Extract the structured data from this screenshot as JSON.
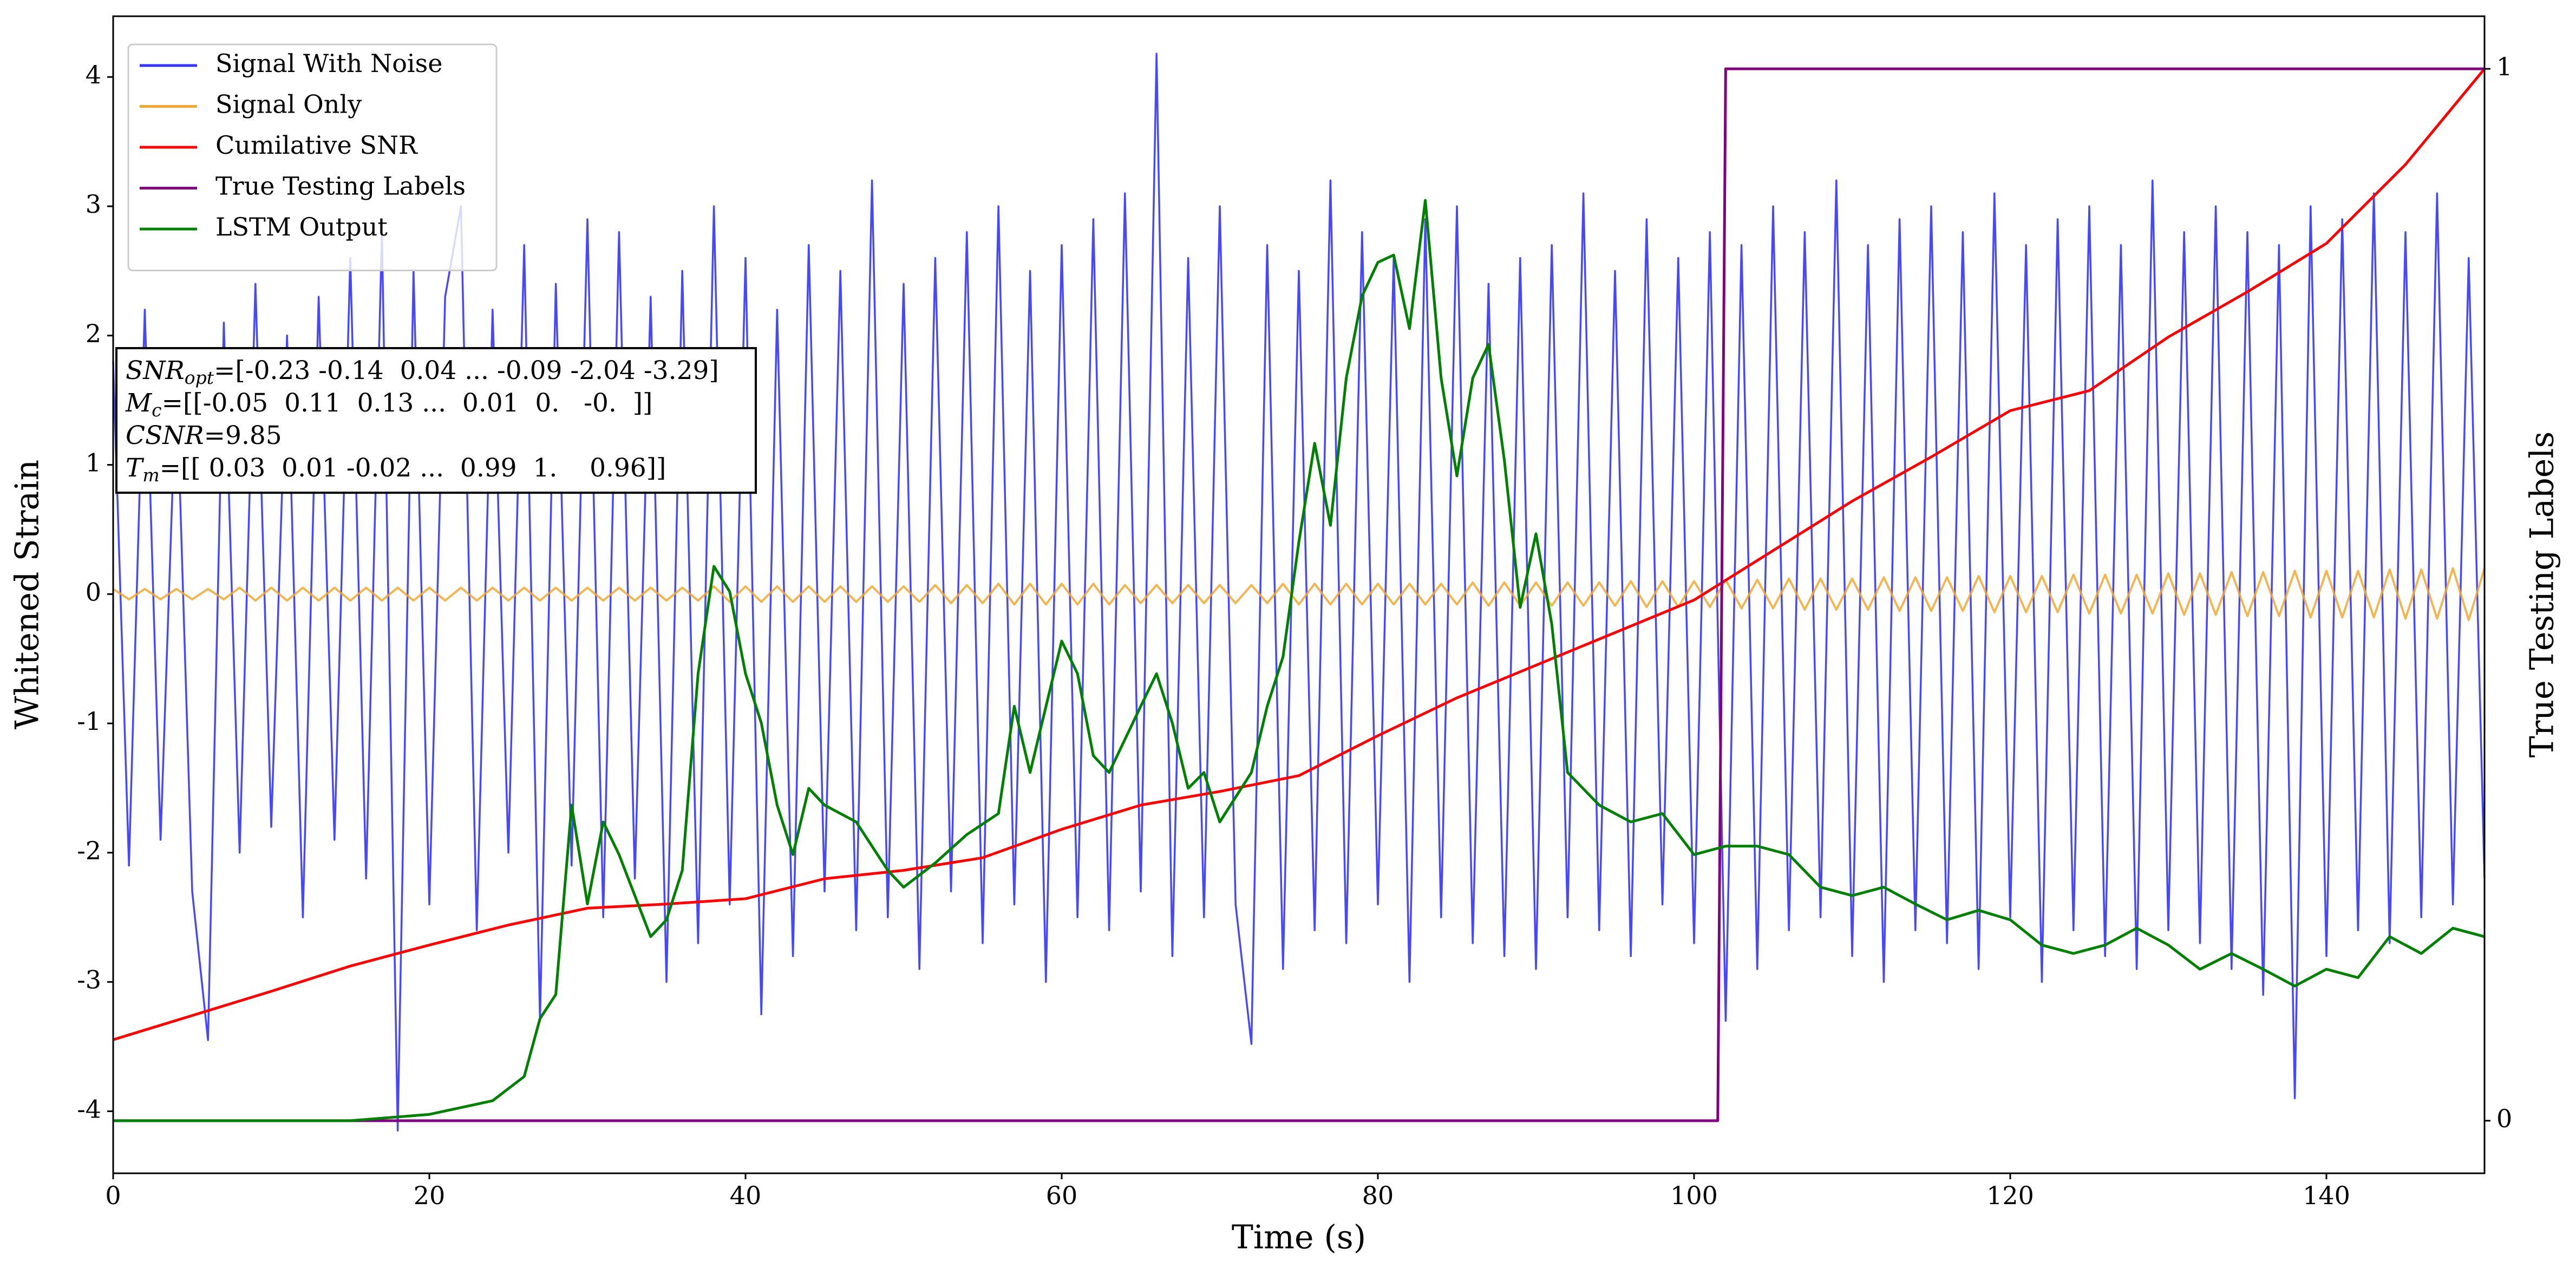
{
  "chart_data": {
    "type": "line",
    "xlabel": "Time (s)",
    "ylabel": "Whitened Strain",
    "y2label": "True Testing Labels",
    "xlim": [
      0,
      150
    ],
    "ylim": [
      -4.48,
      4.47
    ],
    "y2lim": [
      -0.05,
      1.05
    ],
    "xticks": [
      0,
      20,
      40,
      60,
      80,
      100,
      120,
      140
    ],
    "yticks": [
      -4,
      -3,
      -2,
      -1,
      0,
      1,
      2,
      3,
      4
    ],
    "y2ticks": [
      0,
      1
    ],
    "legend": "upper left",
    "x": [
      0,
      1,
      2,
      3,
      4,
      5,
      6,
      7,
      8,
      9,
      10,
      11,
      12,
      13,
      14,
      15,
      16,
      17,
      18,
      19,
      20,
      21,
      22,
      23,
      24,
      25,
      26,
      27,
      28,
      29,
      30,
      31,
      32,
      33,
      34,
      35,
      36,
      37,
      38,
      39,
      40,
      41,
      42,
      43,
      44,
      45,
      46,
      47,
      48,
      49,
      50,
      51,
      52,
      53,
      54,
      55,
      56,
      57,
      58,
      59,
      60,
      61,
      62,
      63,
      64,
      65,
      66,
      67,
      68,
      69,
      70,
      71,
      72,
      73,
      74,
      75,
      76,
      77,
      78,
      79,
      80,
      81,
      82,
      83,
      84,
      85,
      86,
      87,
      88,
      89,
      90,
      91,
      92,
      93,
      94,
      95,
      96,
      97,
      98,
      99,
      100,
      101,
      102,
      103,
      104,
      105,
      106,
      107,
      108,
      109,
      110,
      111,
      112,
      113,
      114,
      115,
      116,
      117,
      118,
      119,
      120,
      121,
      122,
      123,
      124,
      125,
      126,
      127,
      128,
      129,
      130,
      131,
      132,
      133,
      134,
      135,
      136,
      137,
      138,
      139,
      140,
      141,
      142,
      143,
      144,
      145,
      146,
      147,
      148,
      149,
      150
    ],
    "series": [
      {
        "name": "Signal With Noise",
        "color": "#3333ff",
        "values": [
          1.8,
          -2.1,
          2.2,
          -1.9,
          1.7,
          -2.3,
          -3.45,
          2.1,
          -2.0,
          2.4,
          -1.8,
          2.0,
          -2.5,
          2.3,
          -1.9,
          2.6,
          -2.2,
          2.8,
          -4.15,
          2.5,
          -2.4,
          2.3,
          3.0,
          -2.6,
          2.2,
          -2.0,
          2.7,
          -3.3,
          2.4,
          -2.1,
          2.9,
          -2.5,
          2.8,
          -2.2,
          2.3,
          -3.0,
          2.5,
          -2.7,
          3.0,
          -2.4,
          2.6,
          -3.25,
          2.2,
          -2.8,
          2.7,
          -2.3,
          2.5,
          -2.6,
          3.2,
          -2.5,
          2.4,
          -2.9,
          2.6,
          -2.3,
          2.8,
          -2.7,
          3.0,
          -2.4,
          2.5,
          -3.0,
          2.7,
          -2.5,
          2.9,
          -2.6,
          3.1,
          -2.3,
          4.18,
          -2.8,
          2.6,
          -2.5,
          3.0,
          -2.4,
          -3.48,
          2.7,
          -2.9,
          2.5,
          -2.6,
          3.2,
          -2.7,
          2.8,
          -2.4,
          2.6,
          -3.0,
          2.9,
          -2.5,
          3.0,
          -2.7,
          2.4,
          -2.8,
          2.6,
          -2.9,
          2.7,
          -2.5,
          3.1,
          -2.6,
          2.5,
          -2.8,
          2.9,
          -2.4,
          2.6,
          -2.7,
          2.8,
          -3.3,
          2.7,
          -2.9,
          3.0,
          -2.6,
          2.8,
          -2.5,
          3.2,
          -2.8,
          2.7,
          -3.0,
          2.9,
          -2.6,
          3.0,
          -2.7,
          2.8,
          -2.9,
          3.1,
          -2.5,
          2.7,
          -3.0,
          2.9,
          -2.6,
          3.0,
          -2.8,
          2.7,
          -2.9,
          3.2,
          -2.6,
          2.8,
          -2.7,
          3.0,
          -2.9,
          2.8,
          -3.1,
          2.7,
          -3.9,
          3.0,
          -2.8,
          2.9,
          -2.6,
          3.1,
          -2.7,
          2.8,
          -2.5,
          3.1,
          -2.4,
          2.6,
          -2.2
        ]
      },
      {
        "name": "Signal Only",
        "color": "#f0a830",
        "values": [
          0.04,
          -0.04,
          0.04,
          -0.04,
          0.04,
          -0.04,
          0.04,
          -0.04,
          0.05,
          -0.05,
          0.05,
          -0.05,
          0.05,
          -0.05,
          0.05,
          -0.05,
          0.05,
          -0.05,
          0.05,
          -0.05,
          0.05,
          -0.05,
          0.05,
          -0.05,
          0.05,
          -0.05,
          0.05,
          -0.05,
          0.05,
          -0.05,
          0.05,
          -0.05,
          0.05,
          -0.05,
          0.05,
          -0.05,
          0.05,
          -0.05,
          0.06,
          -0.06,
          0.06,
          -0.06,
          0.06,
          -0.06,
          0.06,
          -0.06,
          0.06,
          -0.06,
          0.06,
          -0.06,
          0.06,
          -0.06,
          0.07,
          -0.07,
          0.07,
          -0.07,
          0.08,
          -0.08,
          0.08,
          -0.08,
          0.08,
          -0.08,
          0.08,
          -0.08,
          0.07,
          -0.07,
          0.07,
          -0.07,
          0.07,
          -0.07,
          0.07,
          -0.07,
          0.07,
          -0.07,
          0.08,
          -0.08,
          0.08,
          -0.08,
          0.08,
          -0.08,
          0.08,
          -0.08,
          0.08,
          -0.08,
          0.08,
          -0.08,
          0.09,
          -0.09,
          0.09,
          -0.09,
          0.09,
          -0.09,
          0.09,
          -0.09,
          0.09,
          -0.09,
          0.1,
          -0.1,
          0.1,
          -0.1,
          0.1,
          -0.1,
          0.11,
          -0.11,
          0.11,
          -0.11,
          0.12,
          -0.12,
          0.12,
          -0.12,
          0.12,
          -0.12,
          0.13,
          -0.13,
          0.13,
          -0.13,
          0.13,
          -0.13,
          0.14,
          -0.14,
          0.14,
          -0.14,
          0.14,
          -0.14,
          0.15,
          -0.15,
          0.15,
          -0.15,
          0.15,
          -0.15,
          0.16,
          -0.16,
          0.16,
          -0.16,
          0.17,
          -0.17,
          0.17,
          -0.17,
          0.18,
          -0.18,
          0.18,
          -0.18,
          0.18,
          -0.18,
          0.19,
          -0.19,
          0.19,
          -0.19,
          0.2,
          -0.2,
          0.2
        ]
      },
      {
        "name": "Cumilative SNR",
        "color": "#ff0000",
        "axis": "y2",
        "x": [
          0,
          5,
          10,
          15,
          20,
          25,
          30,
          35,
          40,
          45,
          50,
          55,
          60,
          65,
          70,
          75,
          80,
          85,
          90,
          95,
          100,
          105,
          110,
          115,
          120,
          125,
          130,
          135,
          140,
          145,
          150
        ],
        "values": [
          0.077,
          0.1,
          0.123,
          0.147,
          0.167,
          0.186,
          0.202,
          0.206,
          0.211,
          0.23,
          0.238,
          0.25,
          0.277,
          0.3,
          0.313,
          0.328,
          0.366,
          0.402,
          0.433,
          0.464,
          0.495,
          0.542,
          0.589,
          0.631,
          0.675,
          0.694,
          0.745,
          0.788,
          0.834,
          0.909,
          1.0
        ]
      },
      {
        "name": "True Testing Labels",
        "color": "#800080",
        "axis": "y2",
        "x": [
          0,
          101.5,
          102,
          150
        ],
        "values": [
          0,
          0,
          1,
          1
        ]
      },
      {
        "name": "LSTM Output",
        "color": "#008000",
        "axis": "y2",
        "x": [
          0,
          15,
          20,
          24,
          26,
          27,
          28,
          29,
          30,
          31,
          32,
          34,
          35,
          36,
          37,
          38,
          39,
          40,
          41,
          42,
          43,
          44,
          45,
          47,
          49,
          50,
          52,
          54,
          56,
          57,
          58,
          60,
          61,
          62,
          63,
          65,
          66,
          67,
          68,
          69,
          70,
          72,
          73,
          74,
          75,
          76,
          77,
          78,
          79,
          80,
          81,
          82,
          83,
          84,
          85,
          86,
          87,
          88,
          89,
          90,
          91,
          92,
          94,
          96,
          98,
          100,
          102,
          104,
          106,
          108,
          110,
          112,
          114,
          116,
          118,
          120,
          122,
          124,
          126,
          128,
          130,
          132,
          134,
          136,
          138,
          140,
          142,
          144,
          146,
          148,
          150
        ],
        "values": [
          0,
          0,
          0.006,
          0.019,
          0.042,
          0.097,
          0.12,
          0.3,
          0.206,
          0.284,
          0.253,
          0.175,
          0.191,
          0.238,
          0.425,
          0.527,
          0.503,
          0.425,
          0.378,
          0.3,
          0.253,
          0.316,
          0.3,
          0.284,
          0.238,
          0.222,
          0.245,
          0.272,
          0.292,
          0.394,
          0.331,
          0.456,
          0.425,
          0.347,
          0.331,
          0.394,
          0.425,
          0.378,
          0.316,
          0.331,
          0.284,
          0.331,
          0.394,
          0.441,
          0.55,
          0.644,
          0.566,
          0.706,
          0.784,
          0.816,
          0.823,
          0.753,
          0.875,
          0.706,
          0.613,
          0.706,
          0.738,
          0.628,
          0.488,
          0.558,
          0.472,
          0.331,
          0.3,
          0.284,
          0.292,
          0.253,
          0.261,
          0.261,
          0.253,
          0.222,
          0.214,
          0.222,
          0.206,
          0.191,
          0.2,
          0.191,
          0.167,
          0.159,
          0.167,
          0.183,
          0.167,
          0.144,
          0.159,
          0.144,
          0.128,
          0.144,
          0.136,
          0.175,
          0.159,
          0.183,
          0.175
        ]
      }
    ],
    "annotation": [
      {
        "name": "SNR",
        "sub": "opt",
        "text": "=[-0.23 -0.14  0.04 ... -0.09 -2.04 -3.29]"
      },
      {
        "name": "M",
        "sub": "c",
        "text": "=[[-0.05  0.11  0.13 ...  0.01  0.   -0.  ]]"
      },
      {
        "name": "CSNR",
        "text": "=9.85"
      },
      {
        "name": "T",
        "sub": "m",
        "text": "=[[ 0.03  0.01 -0.02 ...  0.99  1.    0.96]]"
      }
    ]
  }
}
